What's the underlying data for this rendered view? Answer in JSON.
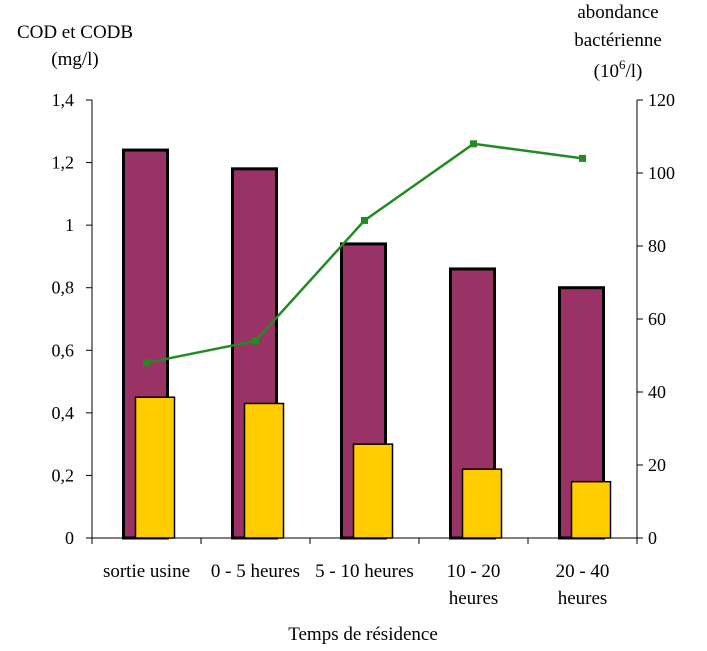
{
  "chart_data": {
    "type": "bar",
    "title": "",
    "xlabel": "Temps de résidence",
    "categories": [
      [
        "sortie usine"
      ],
      [
        "0 - 5 heures"
      ],
      [
        "5 - 10 heures"
      ],
      [
        "10 - 20",
        "heures"
      ],
      [
        "20 - 40",
        "heures"
      ]
    ],
    "y_left": {
      "label_lines": [
        "COD et CODB",
        "(mg/l)"
      ],
      "ylim": [
        0,
        1.4
      ],
      "ticks": [
        0,
        0.2,
        0.4,
        0.6,
        0.8,
        1,
        1.2,
        1.4
      ],
      "tick_labels": [
        "0",
        "0,2",
        "0,4",
        "0,6",
        "0,8",
        "1",
        "1,2",
        "1,4"
      ]
    },
    "y_right": {
      "label_lines": [
        "abondance",
        "bactérienne"
      ],
      "label_unit": {
        "prefix": "(10",
        "sup": "6",
        "suffix": "/l)"
      },
      "ylim": [
        0,
        120
      ],
      "ticks": [
        0,
        20,
        40,
        60,
        80,
        100,
        120
      ],
      "tick_labels": [
        "0",
        "20",
        "40",
        "60",
        "80",
        "100",
        "120"
      ]
    },
    "series": [
      {
        "type": "bar",
        "axis": "left",
        "color": "#993366",
        "values": [
          1.24,
          1.18,
          0.94,
          0.86,
          0.8
        ]
      },
      {
        "type": "bar",
        "axis": "left",
        "color": "#FFCC00",
        "values": [
          0.45,
          0.43,
          0.3,
          0.22,
          0.18
        ]
      },
      {
        "type": "line",
        "axis": "right",
        "color": "#228B22",
        "values": [
          48,
          54,
          87,
          108,
          104
        ]
      }
    ],
    "grid": false,
    "legend": "none"
  }
}
